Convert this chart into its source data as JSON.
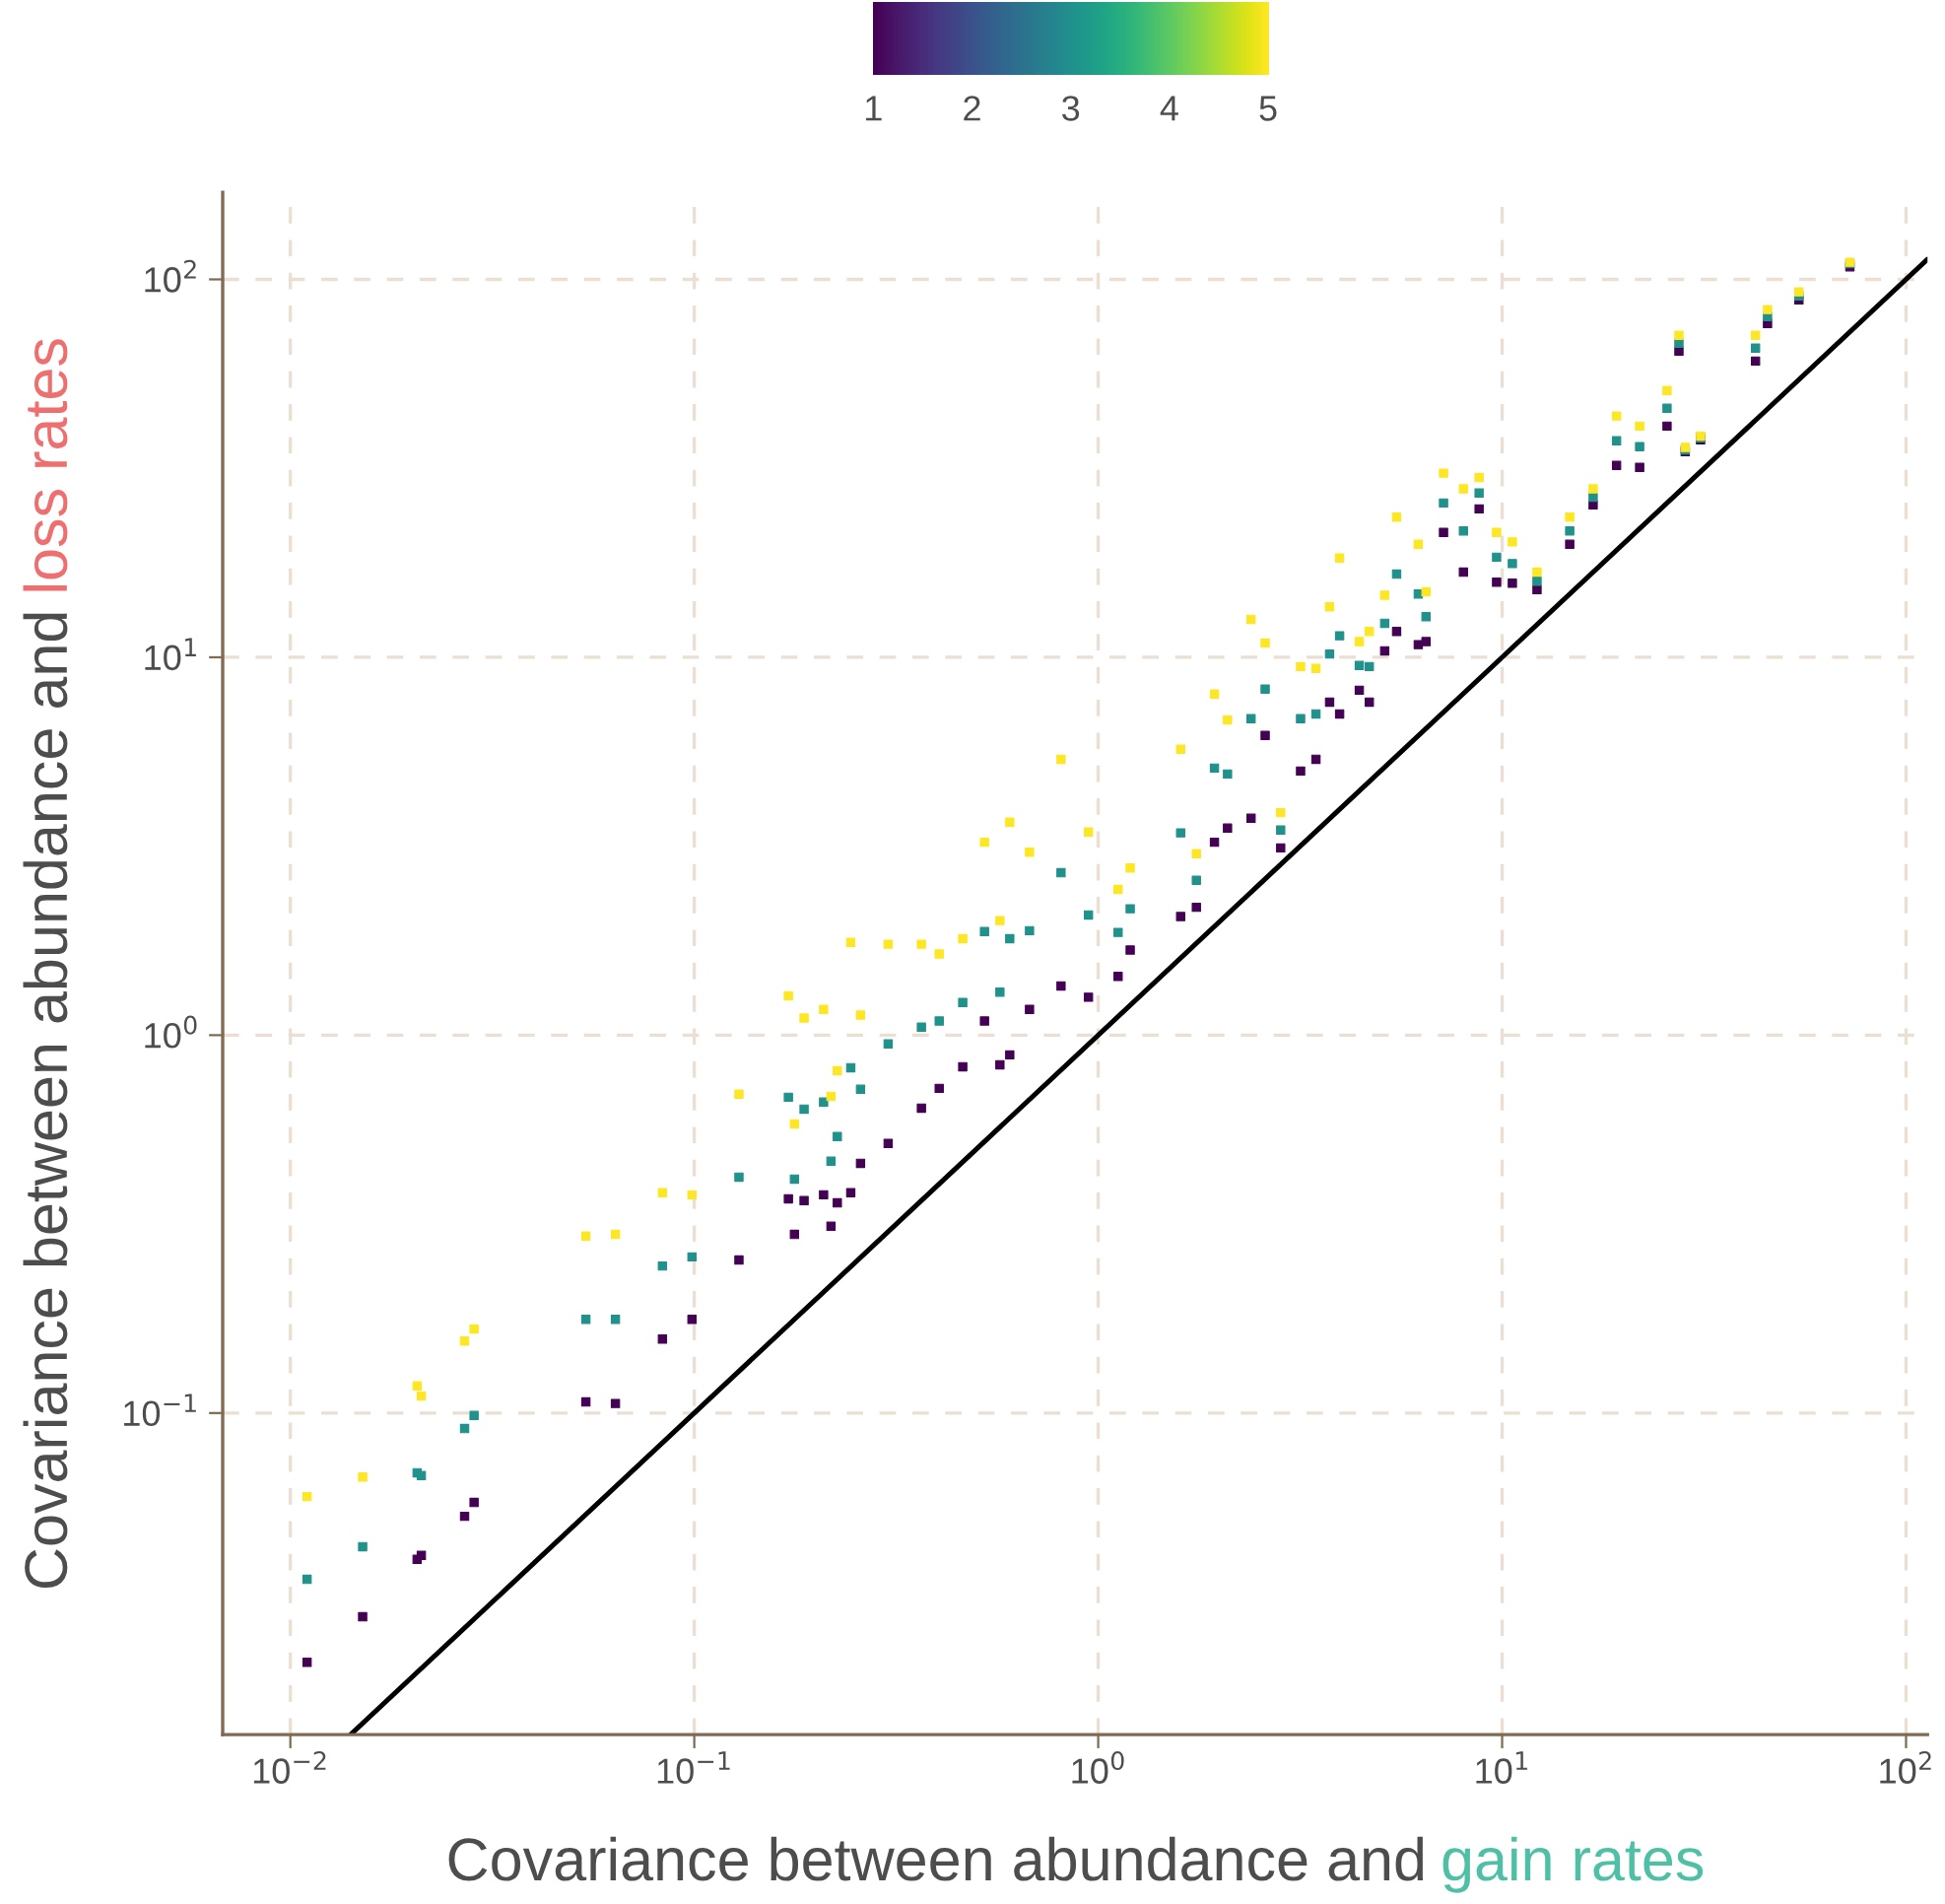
{
  "chart_data": {
    "type": "scatter",
    "xlabel": [
      {
        "text": "Covariance between abundance and ",
        "color": "#4d4d4d"
      },
      {
        "text": "gain rates",
        "color": "#4fbfa5"
      }
    ],
    "ylabel": [
      {
        "text": "Covariance between abundance and ",
        "color": "#4d4d4d"
      },
      {
        "text": "loss rates",
        "color": "#ee6f6f"
      }
    ],
    "log": "xy",
    "grid": true,
    "xlim": [
      0.0068,
      113
    ],
    "ylim": [
      0.0141,
      170
    ],
    "xticks": [
      {
        "value": 0.01,
        "label": "10$^{−2}$"
      },
      {
        "value": 0.1,
        "label": "10$^{−1}$"
      },
      {
        "value": 1,
        "label": "10$^{0}$"
      },
      {
        "value": 10,
        "label": "10$^{1}$"
      },
      {
        "value": 100,
        "label": "10$^{2}$"
      }
    ],
    "yticks": [
      {
        "value": 0.1,
        "label": "10$^{−1}$"
      },
      {
        "value": 1,
        "label": "10$^{0}$"
      },
      {
        "value": 10,
        "label": "10$^{1}$"
      },
      {
        "value": 100,
        "label": "10$^{2}$"
      }
    ],
    "clim": [
      1,
      5
    ],
    "cticks": [
      1,
      2,
      3,
      4,
      5
    ],
    "series": [
      {
        "marker": "square",
        "colors": [
          "#440154",
          "#21918c",
          "#fde725",
          "#440154",
          "#21918c",
          "#fde725",
          "#440154",
          "#21918c",
          "#fde725",
          "#440154",
          "#21918c",
          "#fde725",
          "#440154",
          "#21918c",
          "#fde725",
          "#440154",
          "#21918c",
          "#fde725",
          "#440154",
          "#21918c",
          "#fde725",
          "#440154",
          "#21918c",
          "#fde725",
          "#440154",
          "#21918c",
          "#fde725",
          "#440154",
          "#21918c",
          "#fde725",
          "#440154",
          "#21918c",
          "#fde725",
          "#440154",
          "#21918c",
          "#fde725",
          "#440154",
          "#21918c",
          "#fde725",
          "#440154",
          "#21918c",
          "#fde725",
          "#440154",
          "#21918c",
          "#fde725",
          "#440154",
          "#21918c",
          "#fde725",
          "#440154",
          "#21918c",
          "#fde725",
          "#440154",
          "#21918c",
          "#fde725",
          "#440154",
          "#21918c",
          "#fde725",
          "#440154",
          "#21918c",
          "#fde725",
          "#440154",
          "#21918c",
          "#fde725",
          "#440154",
          "#21918c",
          "#fde725",
          "#440154",
          "#21918c",
          "#fde725",
          "#440154",
          "#21918c",
          "#fde725",
          "#440154",
          "#21918c",
          "#fde725",
          "#440154",
          "#21918c",
          "#fde725",
          "#440154",
          "#21918c",
          "#fde725",
          "#440154",
          "#21918c",
          "#fde725",
          "#440154",
          "#21918c",
          "#fde725",
          "#440154",
          "#21918c",
          "#fde725",
          "#440154",
          "#21918c",
          "#fde725",
          "#440154",
          "#21918c",
          "#fde725",
          "#440154",
          "#21918c",
          "#fde725",
          "#440154",
          "#21918c",
          "#fde725",
          "#440154",
          "#21918c",
          "#fde725",
          "#440154",
          "#21918c",
          "#fde725",
          "#440154",
          "#21918c",
          "#fde725",
          "#440154",
          "#21918c",
          "#fde725",
          "#440154",
          "#21918c",
          "#fde725",
          "#440154",
          "#21918c",
          "#fde725",
          "#440154",
          "#21918c",
          "#fde725",
          "#440154",
          "#21918c",
          "#fde725",
          "#440154",
          "#21918c",
          "#fde725",
          "#440154",
          "#21918c",
          "#fde725",
          "#440154",
          "#21918c",
          "#fde725",
          "#440154",
          "#21918c",
          "#fde725",
          "#440154",
          "#21918c",
          "#fde725",
          "#440154",
          "#21918c",
          "#fde725",
          "#440154",
          "#21918c",
          "#fde725",
          "#440154",
          "#21918c",
          "#fde725",
          "#440154",
          "#21918c",
          "#fde725",
          "#440154",
          "#21918c",
          "#fde725",
          "#440154",
          "#21918c",
          "#fde725",
          "#440154",
          "#21918c",
          "#fde725",
          "#440154",
          "#21918c",
          "#fde725",
          "#440154",
          "#21918c",
          "#fde725",
          "#440154",
          "#21918c",
          "#fde725",
          "#440154",
          "#21918c",
          "#fde725",
          "#440154",
          "#21918c",
          "#fde725",
          "#440154",
          "#21918c",
          "#fde725",
          "#440154",
          "#21918c",
          "#fde725",
          "#440154",
          "#21918c",
          "#fde725",
          "#440154",
          "#21918c",
          "#fde725",
          "#440154",
          "#21918c",
          "#fde725",
          "#440154",
          "#21918c",
          "#fde725",
          "#440154",
          "#21918c",
          "#fde725"
        ],
        "x": [
          0.011,
          0.011,
          0.011,
          0.0151,
          0.0151,
          0.0151,
          0.0206,
          0.0206,
          0.0206,
          0.0211,
          0.0211,
          0.0211,
          0.027,
          0.027,
          0.027,
          0.0285,
          0.0285,
          0.0285,
          0.0539,
          0.0539,
          0.0539,
          0.0638,
          0.0638,
          0.0638,
          0.0834,
          0.0834,
          0.0834,
          0.0987,
          0.0987,
          0.0987,
          0.129,
          0.129,
          0.129,
          0.171,
          0.171,
          0.171,
          0.177,
          0.177,
          0.177,
          0.187,
          0.187,
          0.187,
          0.209,
          0.209,
          0.209,
          0.218,
          0.218,
          0.218,
          0.226,
          0.226,
          0.226,
          0.244,
          0.244,
          0.244,
          0.258,
          0.258,
          0.258,
          0.302,
          0.302,
          0.302,
          0.365,
          0.365,
          0.365,
          0.404,
          0.404,
          0.404,
          0.462,
          0.462,
          0.462,
          0.523,
          0.523,
          0.523,
          0.571,
          0.571,
          0.571,
          0.604,
          0.604,
          0.604,
          0.676,
          0.676,
          0.676,
          0.809,
          0.809,
          0.809,
          0.946,
          0.946,
          0.946,
          1.12,
          1.12,
          1.12,
          1.2,
          1.2,
          1.2,
          1.6,
          1.6,
          1.6,
          1.75,
          1.75,
          1.75,
          1.94,
          1.94,
          1.94,
          2.09,
          2.09,
          2.09,
          2.39,
          2.39,
          2.39,
          2.59,
          2.59,
          2.59,
          2.83,
          2.83,
          2.83,
          3.17,
          3.17,
          3.17,
          3.46,
          3.46,
          3.46,
          3.74,
          3.74,
          3.74,
          3.96,
          3.96,
          3.96,
          4.43,
          4.43,
          4.43,
          4.69,
          4.69,
          4.69,
          5.12,
          5.12,
          5.12,
          5.48,
          5.48,
          5.48,
          6.2,
          6.2,
          6.2,
          6.48,
          6.48,
          6.48,
          7.16,
          7.16,
          7.16,
          8.02,
          8.02,
          8.02,
          8.77,
          8.77,
          8.77,
          9.69,
          9.69,
          9.69,
          10.6,
          10.6,
          10.6,
          12.2,
          12.2,
          12.2,
          14.7,
          14.7,
          14.7,
          16.8,
          16.8,
          16.8,
          19.2,
          19.2,
          19.2,
          21.9,
          21.9,
          21.9,
          25.6,
          25.6,
          25.6,
          28.4,
          28.4,
          28.4,
          31,
          31,
          31,
          27.4,
          27.4,
          27.4,
          42.4,
          42.4,
          42.4,
          45.4,
          45.4,
          45.4,
          54.3,
          54.3,
          54.3,
          72.6,
          72.6,
          72.6
        ],
        "values": [
          0.0219,
          0.0363,
          0.0601,
          0.0289,
          0.0443,
          0.0677,
          0.041,
          0.0695,
          0.118,
          0.042,
          0.0683,
          0.111,
          0.0533,
          0.091,
          0.155,
          0.058,
          0.0985,
          0.167,
          0.107,
          0.177,
          0.294,
          0.106,
          0.177,
          0.297,
          0.157,
          0.245,
          0.383,
          0.177,
          0.259,
          0.378,
          0.254,
          0.421,
          0.698,
          0.369,
          0.685,
          1.27,
          0.297,
          0.416,
          0.582,
          0.365,
          0.637,
          1.11,
          0.378,
          0.665,
          1.17,
          0.312,
          0.464,
          0.689,
          0.36,
          0.539,
          0.805,
          0.383,
          0.82,
          1.76,
          0.458,
          0.719,
          1.13,
          0.517,
          0.948,
          1.74,
          0.641,
          1.05,
          1.74,
          0.723,
          1.09,
          1.64,
          0.825,
          1.22,
          1.8,
          1.09,
          1.88,
          3.24,
          0.835,
          1.3,
          2.01,
          0.887,
          1.8,
          3.66,
          1.17,
          1.89,
          3.05,
          1.35,
          2.69,
          5.37,
          1.26,
          2.08,
          3.45,
          1.43,
          1.87,
          2.43,
          1.68,
          2.16,
          2.77,
          2.06,
          3.43,
          5.71,
          2.18,
          2.57,
          3.02,
          3.24,
          5.09,
          7.99,
          3.53,
          4.91,
          6.83,
          3.75,
          6.88,
          12.6,
          6.21,
          8.24,
          10.9,
          3.13,
          3.49,
          3.88,
          5.0,
          6.88,
          9.45,
          5.37,
          7.08,
          9.34,
          7.61,
          10.2,
          13.6,
          7.08,
          11.4,
          18.3,
          8.18,
          9.51,
          11.0,
          7.61,
          9.45,
          11.7,
          10.4,
          12.3,
          14.6,
          11.7,
          16.6,
          23.5,
          10.8,
          14.7,
          19.9,
          11.0,
          12.8,
          14.9,
          21.4,
          25.6,
          30.7,
          16.8,
          21.6,
          27.9,
          24.7,
          27.2,
          29.9,
          15.8,
          18.4,
          21.4,
          15.7,
          17.7,
          20.2,
          15.1,
          15.9,
          16.8,
          19.9,
          21.6,
          23.5,
          25.3,
          26.5,
          27.9,
          32.2,
          37.4,
          43.5,
          31.8,
          36.1,
          40.9,
          40.9,
          45.6,
          50.8,
          35.0,
          35.4,
          35.9,
          37.6,
          38.1,
          38.5,
          64.6,
          67.8,
          71.1,
          60.8,
          65.8,
          71.1,
          76.4,
          79.7,
          83.2,
          88.3,
          90.4,
          92.7,
          108,
          110,
          111
        ],
        "cvalues": [
          1,
          3,
          5,
          1,
          3,
          5,
          1,
          3,
          5,
          1,
          3,
          5,
          1,
          3,
          5,
          1,
          3,
          5,
          1,
          3,
          5,
          1,
          3,
          5,
          1,
          3,
          5,
          1,
          3,
          5,
          1,
          3,
          5,
          1,
          3,
          5,
          1,
          3,
          5,
          1,
          3,
          5,
          1,
          3,
          5,
          1,
          3,
          5,
          1,
          3,
          5,
          1,
          3,
          5,
          1,
          3,
          5,
          1,
          3,
          5,
          1,
          3,
          5,
          1,
          3,
          5,
          1,
          3,
          5,
          1,
          3,
          5,
          1,
          3,
          5,
          1,
          3,
          5,
          1,
          3,
          5,
          1,
          3,
          5,
          1,
          3,
          5,
          1,
          3,
          5,
          1,
          3,
          5,
          1,
          3,
          5,
          1,
          3,
          5,
          1,
          3,
          5,
          1,
          3,
          5,
          1,
          3,
          5,
          1,
          3,
          5,
          1,
          3,
          5,
          1,
          3,
          5,
          1,
          3,
          5,
          1,
          3,
          5,
          1,
          3,
          5,
          1,
          3,
          5,
          1,
          3,
          5,
          1,
          3,
          5,
          1,
          3,
          5,
          1,
          3,
          5,
          1,
          3,
          5,
          1,
          3,
          5,
          1,
          3,
          5,
          1,
          3,
          5,
          1,
          3,
          5,
          1,
          3,
          5,
          1,
          3,
          5,
          1,
          3,
          5,
          1,
          3,
          5,
          1,
          3,
          5,
          1,
          3,
          5,
          1,
          3,
          5,
          1,
          3,
          5,
          1,
          3,
          5,
          1,
          3,
          5,
          1,
          3,
          5,
          1,
          3,
          5,
          1,
          3,
          5,
          1,
          3,
          5
        ]
      },
      {
        "type": "line",
        "color": "#000000",
        "x": [
          0.0141,
          113
        ],
        "values": [
          0.0141,
          113
        ]
      }
    ]
  }
}
